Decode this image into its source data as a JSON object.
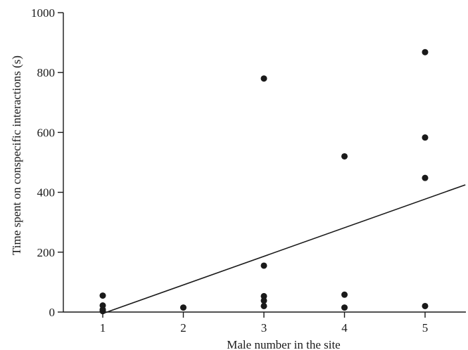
{
  "chart_data": {
    "type": "scatter",
    "xlabel": "Male number in the site",
    "ylabel": "Time spent on conspecific interactions (s)",
    "xlim": [
      0.5,
      5.5
    ],
    "ylim": [
      0,
      1000
    ],
    "x_ticks": [
      1,
      2,
      3,
      4,
      5
    ],
    "y_ticks": [
      0,
      200,
      400,
      600,
      800,
      1000
    ],
    "grid": false,
    "legend": "none",
    "points": [
      {
        "x": 1,
        "y": 55
      },
      {
        "x": 1,
        "y": 22
      },
      {
        "x": 1,
        "y": 8
      },
      {
        "x": 1,
        "y": 3
      },
      {
        "x": 2,
        "y": 15
      },
      {
        "x": 3,
        "y": 780
      },
      {
        "x": 3,
        "y": 155
      },
      {
        "x": 3,
        "y": 53
      },
      {
        "x": 3,
        "y": 38
      },
      {
        "x": 3,
        "y": 20
      },
      {
        "x": 4,
        "y": 520
      },
      {
        "x": 4,
        "y": 58
      },
      {
        "x": 4,
        "y": 15
      },
      {
        "x": 5,
        "y": 868
      },
      {
        "x": 5,
        "y": 583
      },
      {
        "x": 5,
        "y": 448
      },
      {
        "x": 5,
        "y": 20
      }
    ],
    "trendline": {
      "type": "linear",
      "x": [
        1,
        5.5
      ],
      "y": [
        -5,
        425
      ]
    },
    "colors": {
      "points": "#1a1a1a",
      "line": "#1a1a1a",
      "axes": "#1a1a1a"
    }
  }
}
